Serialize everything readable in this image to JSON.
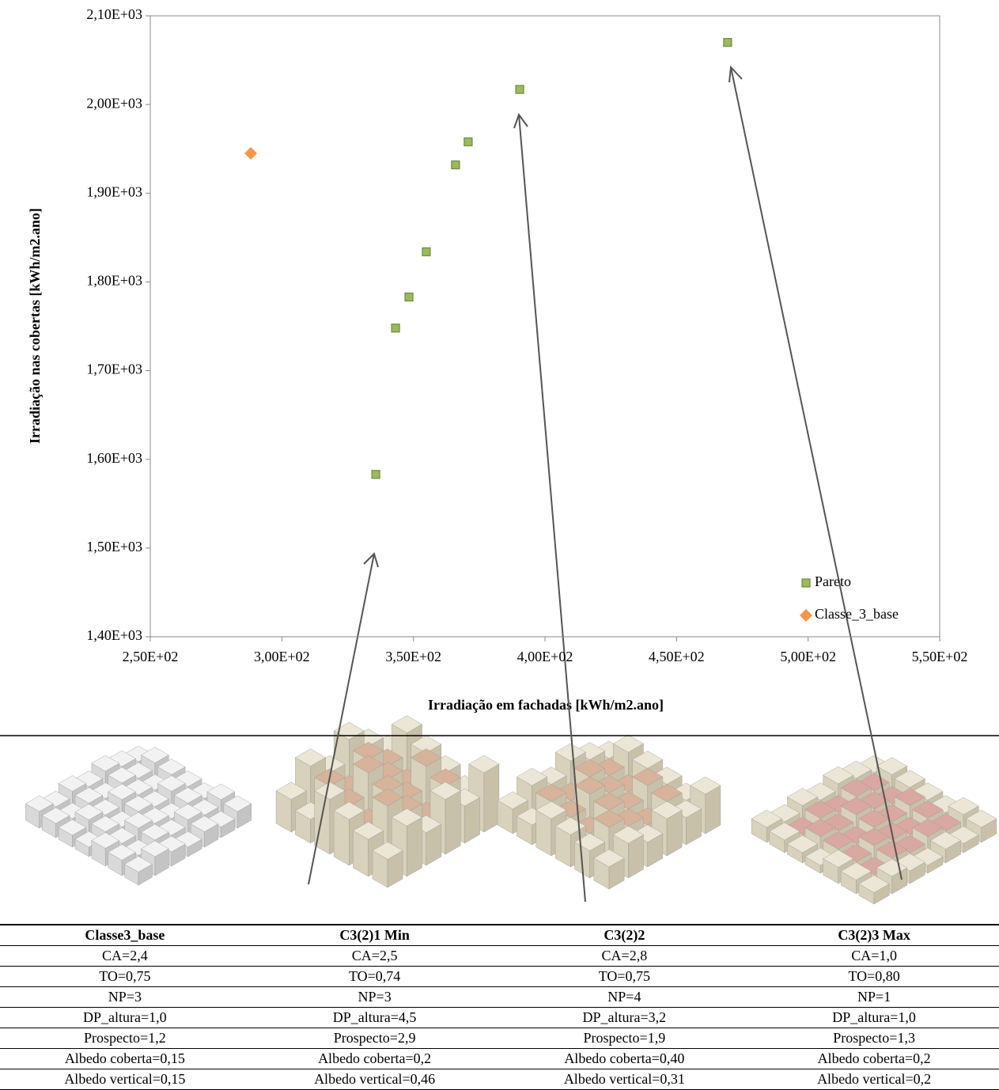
{
  "chart_data": {
    "type": "scatter",
    "xlabel": "Irradiação em fachadas [kWh/m2.ano]",
    "ylabel": "Irradiação nas cobertas [kWh/m2.ano]",
    "xlim": [
      250,
      550
    ],
    "ylim": [
      1400,
      2100
    ],
    "xticks": [
      {
        "value": 250,
        "label": "2,50E+02"
      },
      {
        "value": 300,
        "label": "3,00E+02"
      },
      {
        "value": 350,
        "label": "3,50E+02"
      },
      {
        "value": 400,
        "label": "4,00E+02"
      },
      {
        "value": 450,
        "label": "4,50E+02"
      },
      {
        "value": 500,
        "label": "5,00E+02"
      },
      {
        "value": 550,
        "label": "5,50E+02"
      }
    ],
    "yticks": [
      {
        "value": 1400,
        "label": "1,40E+03"
      },
      {
        "value": 1500,
        "label": "1,50E+03"
      },
      {
        "value": 1600,
        "label": "1,60E+03"
      },
      {
        "value": 1700,
        "label": "1,70E+03"
      },
      {
        "value": 1800,
        "label": "1,80E+03"
      },
      {
        "value": 1900,
        "label": "1,90E+03"
      },
      {
        "value": 2000,
        "label": "2,00E+03"
      },
      {
        "value": 2100,
        "label": "2,10E+03"
      }
    ],
    "series": [
      {
        "name": "Pareto",
        "color": "#9bbb59",
        "marker": "square",
        "x": [
          335.7,
          343.2,
          348.3,
          354.9,
          366.0,
          370.8,
          390.4,
          469.4
        ],
        "values": [
          1583,
          1748,
          1783,
          1834,
          1932,
          1958,
          2017,
          2070
        ]
      },
      {
        "name": "Classe_3_base",
        "color": "#f79646",
        "marker": "diamond",
        "x": [
          288.2
        ],
        "values": [
          1945
        ]
      }
    ]
  },
  "table": {
    "header": [
      "Classe3_base",
      "C3(2)1 Min",
      "C3(2)2",
      "C3(2)3 Max"
    ],
    "rows": [
      [
        "CA=2,4",
        "CA=2,5",
        "CA=2,8",
        "CA=1,0"
      ],
      [
        "TO=0,75",
        "TO=0,74",
        "TO=0,75",
        "TO=0,80"
      ],
      [
        "NP=3",
        "NP=3",
        "NP=4",
        "NP=1"
      ],
      [
        "DP_altura=1,0",
        "DP_altura=4,5",
        "DP_altura=3,2",
        "DP_altura=1,0"
      ],
      [
        "Prospecto=1,2",
        "Prospecto=2,9",
        "Prospecto=1,9",
        "Prospecto=1,3"
      ],
      [
        "Albedo coberta=0,15",
        "Albedo coberta=0,2",
        "Albedo coberta=0,40",
        "Albedo coberta=0,2"
      ],
      [
        "Albedo vertical=0,15",
        "Albedo vertical=0,46",
        "Albedo vertical=0,31",
        "Albedo vertical=0,2"
      ]
    ]
  }
}
